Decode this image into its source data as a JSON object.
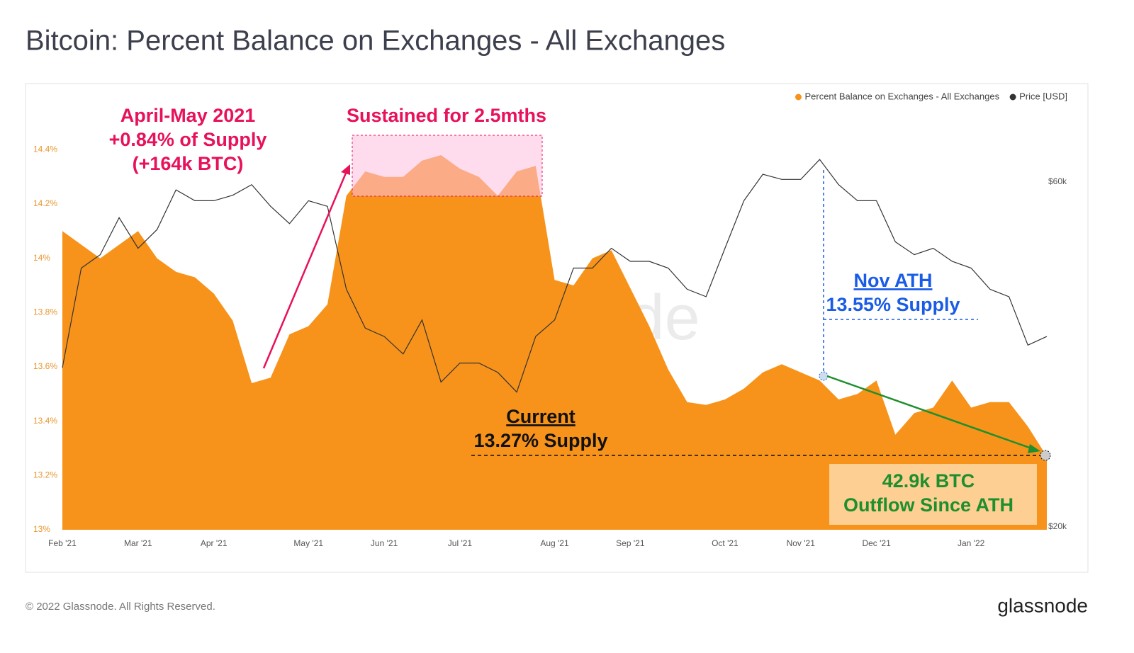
{
  "title": "Bitcoin: Percent Balance on Exchanges - All Exchanges",
  "footer": "© 2022 Glassnode. All Rights Reserved.",
  "logo": "glassnode",
  "chart_data": {
    "type": "area",
    "watermark": "glassnode",
    "legend": "top-right",
    "grid": false,
    "categories": [
      "Feb '21",
      null,
      null,
      null,
      "Mar '21",
      null,
      null,
      null,
      "Apr '21",
      null,
      null,
      null,
      null,
      "May '21",
      null,
      null,
      null,
      "Jun '21",
      null,
      null,
      null,
      "Jul '21",
      null,
      null,
      null,
      null,
      "Aug '21",
      null,
      null,
      null,
      "Sep '21",
      null,
      null,
      null,
      null,
      "Oct '21",
      null,
      null,
      null,
      "Nov '21",
      null,
      null,
      null,
      "Dec '21",
      null,
      null,
      null,
      null,
      "Jan '22",
      null,
      null,
      null,
      null
    ],
    "ylim": [
      13,
      14.56
    ],
    "yticks": [
      {
        "value": 13,
        "label": "13%"
      },
      {
        "value": 13.2,
        "label": "13.2%"
      },
      {
        "value": 13.4,
        "label": "13.4%"
      },
      {
        "value": 13.6,
        "label": "13.6%"
      },
      {
        "value": 13.8,
        "label": "13.8%"
      },
      {
        "value": 14,
        "label": "14%"
      },
      {
        "value": 14.2,
        "label": "14.2%"
      },
      {
        "value": 14.4,
        "label": "14.4%"
      }
    ],
    "y2lim": [
      20000,
      77000
    ],
    "y2scale": "log",
    "y2ticks": [
      {
        "value": 20000,
        "label": "$20k"
      },
      {
        "value": 60000,
        "label": "$60k"
      }
    ],
    "series": [
      {
        "name": "Percent Balance on Exchanges - All Exchanges",
        "type": "area",
        "color": "#f7931a",
        "values": [
          14.1,
          14.05,
          14.0,
          14.05,
          14.1,
          14.0,
          13.95,
          13.93,
          13.87,
          13.77,
          13.54,
          13.56,
          13.72,
          13.75,
          13.83,
          14.23,
          14.32,
          14.3,
          14.3,
          14.36,
          14.38,
          14.33,
          14.3,
          14.23,
          14.32,
          14.34,
          13.92,
          13.9,
          14.0,
          14.03,
          13.89,
          13.75,
          13.59,
          13.47,
          13.46,
          13.48,
          13.52,
          13.58,
          13.61,
          13.58,
          13.55,
          13.48,
          13.5,
          13.55,
          13.35,
          13.43,
          13.45,
          13.55,
          13.45,
          13.47,
          13.47,
          13.38,
          13.27
        ]
      },
      {
        "name": "Price [USD]",
        "type": "line",
        "axis": "y2",
        "color": "#333333",
        "values": [
          33500,
          46000,
          48000,
          54000,
          49000,
          52000,
          59000,
          57000,
          57000,
          58000,
          60000,
          56000,
          53000,
          57000,
          56000,
          43000,
          38000,
          37000,
          35000,
          39000,
          32000,
          34000,
          34000,
          33000,
          31000,
          37000,
          39000,
          46000,
          46000,
          49000,
          47000,
          47000,
          46000,
          43000,
          42000,
          49000,
          57000,
          62000,
          61000,
          61000,
          65000,
          60000,
          57000,
          57000,
          50000,
          48000,
          49000,
          47000,
          46000,
          43000,
          42000,
          36000,
          37000
        ]
      }
    ],
    "annotations": [
      {
        "lines": [
          "April-May 2021",
          "+0.84% of Supply",
          "(+164k BTC)"
        ],
        "color": "#e8115b"
      },
      {
        "lines": [
          "Sustained for 2.5mths"
        ],
        "color": "#e8115b"
      },
      {
        "lines": [
          "Current",
          "13.27% Supply"
        ],
        "color": "#111111"
      },
      {
        "lines": [
          "Nov ATH",
          "13.55% Supply"
        ],
        "color": "#1a5ce6"
      },
      {
        "lines": [
          "42.9k BTC",
          "Outflow Since ATH"
        ],
        "color": "#1e8f2e"
      }
    ]
  }
}
